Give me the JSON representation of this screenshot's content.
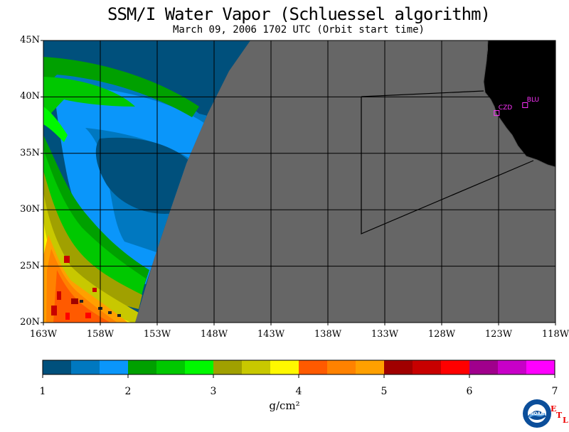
{
  "title": "SSM/I Water Vapor (Schluessel algorithm)",
  "subtitle": "March 09, 2006  1702 UTC  (Orbit start time)",
  "map": {
    "lat_range": [
      20,
      45
    ],
    "lon_range": [
      -163,
      -118
    ],
    "lat_labels": [
      "45N",
      "40N",
      "35N",
      "30N",
      "25N",
      "20N"
    ],
    "lon_labels": [
      "163W",
      "158W",
      "153W",
      "148W",
      "143W",
      "138W",
      "133W",
      "128W",
      "123W",
      "118W"
    ],
    "grid": true,
    "no_data_color": "#666666",
    "land_color": "#000000",
    "stations": [
      {
        "name": "CZD",
        "lat": 38.6,
        "lon": -123.2
      },
      {
        "name": "BLU",
        "lat": 39.3,
        "lon": -120.7
      }
    ]
  },
  "colorbar": {
    "min": 1,
    "max": 7,
    "tick_labels": [
      "1",
      "2",
      "3",
      "4",
      "5",
      "6",
      "7"
    ],
    "unit_label": "g/cm²",
    "colors": [
      "#00507c",
      "#0078c0",
      "#0a96fa",
      "#00a000",
      "#00c800",
      "#00f800",
      "#a0a000",
      "#c8c800",
      "#fff800",
      "#ff5a00",
      "#ff8200",
      "#ffa000",
      "#a00000",
      "#c80000",
      "#ff0000",
      "#a0008c",
      "#c800c8",
      "#ff00ff"
    ]
  },
  "branding": {
    "noaa": "NOAA",
    "etl": [
      "E",
      "T",
      "L"
    ]
  }
}
